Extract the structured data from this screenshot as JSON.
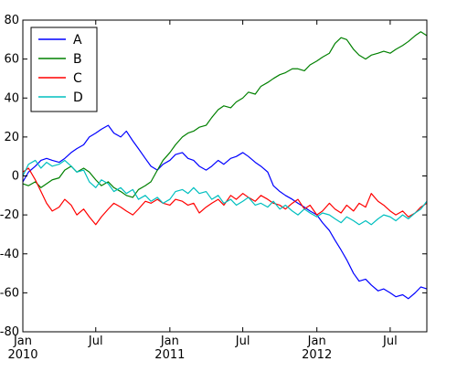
{
  "chart_data": {
    "type": "line",
    "title": "",
    "xlabel": "",
    "ylabel": "",
    "xlim": [
      "2010-01-01",
      "2012-09-30"
    ],
    "ylim": [
      -80,
      80
    ],
    "grid": false,
    "legend_position": "top-left",
    "y_ticks": [
      -80,
      -60,
      -40,
      -20,
      0,
      20,
      40,
      60,
      80
    ],
    "x_ticks": [
      {
        "date": "2010-01-01",
        "label": "Jan",
        "sublabel": "2010"
      },
      {
        "date": "2010-07-01",
        "label": "Jul",
        "sublabel": ""
      },
      {
        "date": "2011-01-01",
        "label": "Jan",
        "sublabel": "2011"
      },
      {
        "date": "2011-07-01",
        "label": "Jul",
        "sublabel": ""
      },
      {
        "date": "2012-01-01",
        "label": "Jan",
        "sublabel": "2012"
      },
      {
        "date": "2012-07-01",
        "label": "Jul",
        "sublabel": ""
      }
    ],
    "series": [
      {
        "name": "A",
        "color": "#0000ff",
        "points": [
          [
            "2010-01-01",
            -3
          ],
          [
            "2010-01-15",
            2
          ],
          [
            "2010-02-01",
            5
          ],
          [
            "2010-02-15",
            8
          ],
          [
            "2010-03-01",
            9
          ],
          [
            "2010-03-15",
            8
          ],
          [
            "2010-04-01",
            7
          ],
          [
            "2010-04-15",
            9
          ],
          [
            "2010-05-01",
            12
          ],
          [
            "2010-05-15",
            14
          ],
          [
            "2010-06-01",
            16
          ],
          [
            "2010-06-15",
            20
          ],
          [
            "2010-07-01",
            22
          ],
          [
            "2010-07-15",
            24
          ],
          [
            "2010-08-01",
            26
          ],
          [
            "2010-08-15",
            22
          ],
          [
            "2010-09-01",
            20
          ],
          [
            "2010-09-15",
            23
          ],
          [
            "2010-10-01",
            18
          ],
          [
            "2010-10-15",
            14
          ],
          [
            "2010-11-01",
            9
          ],
          [
            "2010-11-15",
            5
          ],
          [
            "2010-12-01",
            3
          ],
          [
            "2010-12-15",
            6
          ],
          [
            "2011-01-01",
            8
          ],
          [
            "2011-01-15",
            11
          ],
          [
            "2011-02-01",
            12
          ],
          [
            "2011-02-15",
            9
          ],
          [
            "2011-03-01",
            8
          ],
          [
            "2011-03-15",
            5
          ],
          [
            "2011-04-01",
            3
          ],
          [
            "2011-04-15",
            5
          ],
          [
            "2011-05-01",
            8
          ],
          [
            "2011-05-15",
            6
          ],
          [
            "2011-06-01",
            9
          ],
          [
            "2011-06-15",
            10
          ],
          [
            "2011-07-01",
            12
          ],
          [
            "2011-07-15",
            10
          ],
          [
            "2011-08-01",
            7
          ],
          [
            "2011-08-15",
            5
          ],
          [
            "2011-09-01",
            2
          ],
          [
            "2011-09-15",
            -5
          ],
          [
            "2011-10-01",
            -8
          ],
          [
            "2011-10-15",
            -10
          ],
          [
            "2011-11-01",
            -12
          ],
          [
            "2011-11-15",
            -14
          ],
          [
            "2011-12-01",
            -16
          ],
          [
            "2011-12-15",
            -18
          ],
          [
            "2012-01-01",
            -20
          ],
          [
            "2012-01-15",
            -24
          ],
          [
            "2012-02-01",
            -28
          ],
          [
            "2012-02-15",
            -33
          ],
          [
            "2012-03-01",
            -38
          ],
          [
            "2012-03-15",
            -43
          ],
          [
            "2012-04-01",
            -50
          ],
          [
            "2012-04-15",
            -54
          ],
          [
            "2012-05-01",
            -53
          ],
          [
            "2012-05-15",
            -56
          ],
          [
            "2012-06-01",
            -59
          ],
          [
            "2012-06-15",
            -58
          ],
          [
            "2012-07-01",
            -60
          ],
          [
            "2012-07-15",
            -62
          ],
          [
            "2012-08-01",
            -61
          ],
          [
            "2012-08-15",
            -63
          ],
          [
            "2012-09-01",
            -60
          ],
          [
            "2012-09-15",
            -57
          ],
          [
            "2012-09-30",
            -58
          ]
        ]
      },
      {
        "name": "B",
        "color": "#008000",
        "points": [
          [
            "2010-01-01",
            -4
          ],
          [
            "2010-01-15",
            -5
          ],
          [
            "2010-02-01",
            -3
          ],
          [
            "2010-02-15",
            -6
          ],
          [
            "2010-03-01",
            -4
          ],
          [
            "2010-03-15",
            -2
          ],
          [
            "2010-04-01",
            -1
          ],
          [
            "2010-04-15",
            3
          ],
          [
            "2010-05-01",
            5
          ],
          [
            "2010-05-15",
            2
          ],
          [
            "2010-06-01",
            4
          ],
          [
            "2010-06-15",
            2
          ],
          [
            "2010-07-01",
            -2
          ],
          [
            "2010-07-15",
            -5
          ],
          [
            "2010-08-01",
            -3
          ],
          [
            "2010-08-15",
            -6
          ],
          [
            "2010-09-01",
            -8
          ],
          [
            "2010-09-15",
            -10
          ],
          [
            "2010-10-01",
            -11
          ],
          [
            "2010-10-15",
            -7
          ],
          [
            "2010-11-01",
            -5
          ],
          [
            "2010-11-15",
            -3
          ],
          [
            "2010-12-01",
            3
          ],
          [
            "2010-12-15",
            8
          ],
          [
            "2011-01-01",
            12
          ],
          [
            "2011-01-15",
            16
          ],
          [
            "2011-02-01",
            20
          ],
          [
            "2011-02-15",
            22
          ],
          [
            "2011-03-01",
            23
          ],
          [
            "2011-03-15",
            25
          ],
          [
            "2011-04-01",
            26
          ],
          [
            "2011-04-15",
            30
          ],
          [
            "2011-05-01",
            34
          ],
          [
            "2011-05-15",
            36
          ],
          [
            "2011-06-01",
            35
          ],
          [
            "2011-06-15",
            38
          ],
          [
            "2011-07-01",
            40
          ],
          [
            "2011-07-15",
            43
          ],
          [
            "2011-08-01",
            42
          ],
          [
            "2011-08-15",
            46
          ],
          [
            "2011-09-01",
            48
          ],
          [
            "2011-09-15",
            50
          ],
          [
            "2011-10-01",
            52
          ],
          [
            "2011-10-15",
            53
          ],
          [
            "2011-11-01",
            55
          ],
          [
            "2011-11-15",
            55
          ],
          [
            "2011-12-01",
            54
          ],
          [
            "2011-12-15",
            57
          ],
          [
            "2012-01-01",
            59
          ],
          [
            "2012-01-15",
            61
          ],
          [
            "2012-02-01",
            63
          ],
          [
            "2012-02-15",
            68
          ],
          [
            "2012-03-01",
            71
          ],
          [
            "2012-03-15",
            70
          ],
          [
            "2012-04-01",
            65
          ],
          [
            "2012-04-15",
            62
          ],
          [
            "2012-05-01",
            60
          ],
          [
            "2012-05-15",
            62
          ],
          [
            "2012-06-01",
            63
          ],
          [
            "2012-06-15",
            64
          ],
          [
            "2012-07-01",
            63
          ],
          [
            "2012-07-15",
            65
          ],
          [
            "2012-08-01",
            67
          ],
          [
            "2012-08-15",
            69
          ],
          [
            "2012-09-01",
            72
          ],
          [
            "2012-09-15",
            74
          ],
          [
            "2012-09-30",
            72
          ]
        ]
      },
      {
        "name": "C",
        "color": "#ff0000",
        "points": [
          [
            "2010-01-01",
            2
          ],
          [
            "2010-01-15",
            4
          ],
          [
            "2010-02-01",
            -2
          ],
          [
            "2010-02-15",
            -8
          ],
          [
            "2010-03-01",
            -14
          ],
          [
            "2010-03-15",
            -18
          ],
          [
            "2010-04-01",
            -16
          ],
          [
            "2010-04-15",
            -12
          ],
          [
            "2010-05-01",
            -15
          ],
          [
            "2010-05-15",
            -20
          ],
          [
            "2010-06-01",
            -17
          ],
          [
            "2010-06-15",
            -21
          ],
          [
            "2010-07-01",
            -25
          ],
          [
            "2010-07-15",
            -21
          ],
          [
            "2010-08-01",
            -17
          ],
          [
            "2010-08-15",
            -14
          ],
          [
            "2010-09-01",
            -16
          ],
          [
            "2010-09-15",
            -18
          ],
          [
            "2010-10-01",
            -20
          ],
          [
            "2010-10-15",
            -17
          ],
          [
            "2010-11-01",
            -13
          ],
          [
            "2010-11-15",
            -14
          ],
          [
            "2010-12-01",
            -12
          ],
          [
            "2010-12-15",
            -14
          ],
          [
            "2011-01-01",
            -15
          ],
          [
            "2011-01-15",
            -12
          ],
          [
            "2011-02-01",
            -13
          ],
          [
            "2011-02-15",
            -15
          ],
          [
            "2011-03-01",
            -14
          ],
          [
            "2011-03-15",
            -19
          ],
          [
            "2011-04-01",
            -16
          ],
          [
            "2011-04-15",
            -14
          ],
          [
            "2011-05-01",
            -12
          ],
          [
            "2011-05-15",
            -15
          ],
          [
            "2011-06-01",
            -10
          ],
          [
            "2011-06-15",
            -12
          ],
          [
            "2011-07-01",
            -9
          ],
          [
            "2011-07-15",
            -11
          ],
          [
            "2011-08-01",
            -13
          ],
          [
            "2011-08-15",
            -10
          ],
          [
            "2011-09-01",
            -12
          ],
          [
            "2011-09-15",
            -14
          ],
          [
            "2011-10-01",
            -15
          ],
          [
            "2011-10-15",
            -17
          ],
          [
            "2011-11-01",
            -14
          ],
          [
            "2011-11-15",
            -12
          ],
          [
            "2011-12-01",
            -17
          ],
          [
            "2011-12-15",
            -15
          ],
          [
            "2012-01-01",
            -20
          ],
          [
            "2012-01-15",
            -18
          ],
          [
            "2012-02-01",
            -14
          ],
          [
            "2012-02-15",
            -17
          ],
          [
            "2012-03-01",
            -19
          ],
          [
            "2012-03-15",
            -15
          ],
          [
            "2012-04-01",
            -18
          ],
          [
            "2012-04-15",
            -14
          ],
          [
            "2012-05-01",
            -16
          ],
          [
            "2012-05-15",
            -9
          ],
          [
            "2012-06-01",
            -13
          ],
          [
            "2012-06-15",
            -15
          ],
          [
            "2012-07-01",
            -18
          ],
          [
            "2012-07-15",
            -20
          ],
          [
            "2012-08-01",
            -18
          ],
          [
            "2012-08-15",
            -21
          ],
          [
            "2012-09-01",
            -19
          ],
          [
            "2012-09-15",
            -16
          ],
          [
            "2012-09-30",
            -14
          ]
        ]
      },
      {
        "name": "D",
        "color": "#00bfbf",
        "points": [
          [
            "2010-01-01",
            0
          ],
          [
            "2010-01-15",
            6
          ],
          [
            "2010-02-01",
            8
          ],
          [
            "2010-02-15",
            4
          ],
          [
            "2010-03-01",
            7
          ],
          [
            "2010-03-15",
            5
          ],
          [
            "2010-04-01",
            6
          ],
          [
            "2010-04-15",
            8
          ],
          [
            "2010-05-01",
            5
          ],
          [
            "2010-05-15",
            2
          ],
          [
            "2010-06-01",
            3
          ],
          [
            "2010-06-15",
            -3
          ],
          [
            "2010-07-01",
            -6
          ],
          [
            "2010-07-15",
            -2
          ],
          [
            "2010-08-01",
            -4
          ],
          [
            "2010-08-15",
            -8
          ],
          [
            "2010-09-01",
            -6
          ],
          [
            "2010-09-15",
            -9
          ],
          [
            "2010-10-01",
            -7
          ],
          [
            "2010-10-15",
            -12
          ],
          [
            "2010-11-01",
            -10
          ],
          [
            "2010-11-15",
            -13
          ],
          [
            "2010-12-01",
            -11
          ],
          [
            "2010-12-15",
            -14
          ],
          [
            "2011-01-01",
            -12
          ],
          [
            "2011-01-15",
            -8
          ],
          [
            "2011-02-01",
            -7
          ],
          [
            "2011-02-15",
            -9
          ],
          [
            "2011-03-01",
            -6
          ],
          [
            "2011-03-15",
            -9
          ],
          [
            "2011-04-01",
            -8
          ],
          [
            "2011-04-15",
            -12
          ],
          [
            "2011-05-01",
            -10
          ],
          [
            "2011-05-15",
            -14
          ],
          [
            "2011-06-01",
            -12
          ],
          [
            "2011-06-15",
            -15
          ],
          [
            "2011-07-01",
            -13
          ],
          [
            "2011-07-15",
            -11
          ],
          [
            "2011-08-01",
            -15
          ],
          [
            "2011-08-15",
            -14
          ],
          [
            "2011-09-01",
            -16
          ],
          [
            "2011-09-15",
            -13
          ],
          [
            "2011-10-01",
            -17
          ],
          [
            "2011-10-15",
            -15
          ],
          [
            "2011-11-01",
            -18
          ],
          [
            "2011-11-15",
            -20
          ],
          [
            "2011-12-01",
            -17
          ],
          [
            "2011-12-15",
            -19
          ],
          [
            "2012-01-01",
            -21
          ],
          [
            "2012-01-15",
            -19
          ],
          [
            "2012-02-01",
            -20
          ],
          [
            "2012-02-15",
            -22
          ],
          [
            "2012-03-01",
            -24
          ],
          [
            "2012-03-15",
            -21
          ],
          [
            "2012-04-01",
            -23
          ],
          [
            "2012-04-15",
            -25
          ],
          [
            "2012-05-01",
            -23
          ],
          [
            "2012-05-15",
            -25
          ],
          [
            "2012-06-01",
            -22
          ],
          [
            "2012-06-15",
            -20
          ],
          [
            "2012-07-01",
            -21
          ],
          [
            "2012-07-15",
            -23
          ],
          [
            "2012-08-01",
            -20
          ],
          [
            "2012-08-15",
            -22
          ],
          [
            "2012-09-01",
            -19
          ],
          [
            "2012-09-15",
            -17
          ],
          [
            "2012-09-30",
            -13
          ]
        ]
      }
    ]
  }
}
